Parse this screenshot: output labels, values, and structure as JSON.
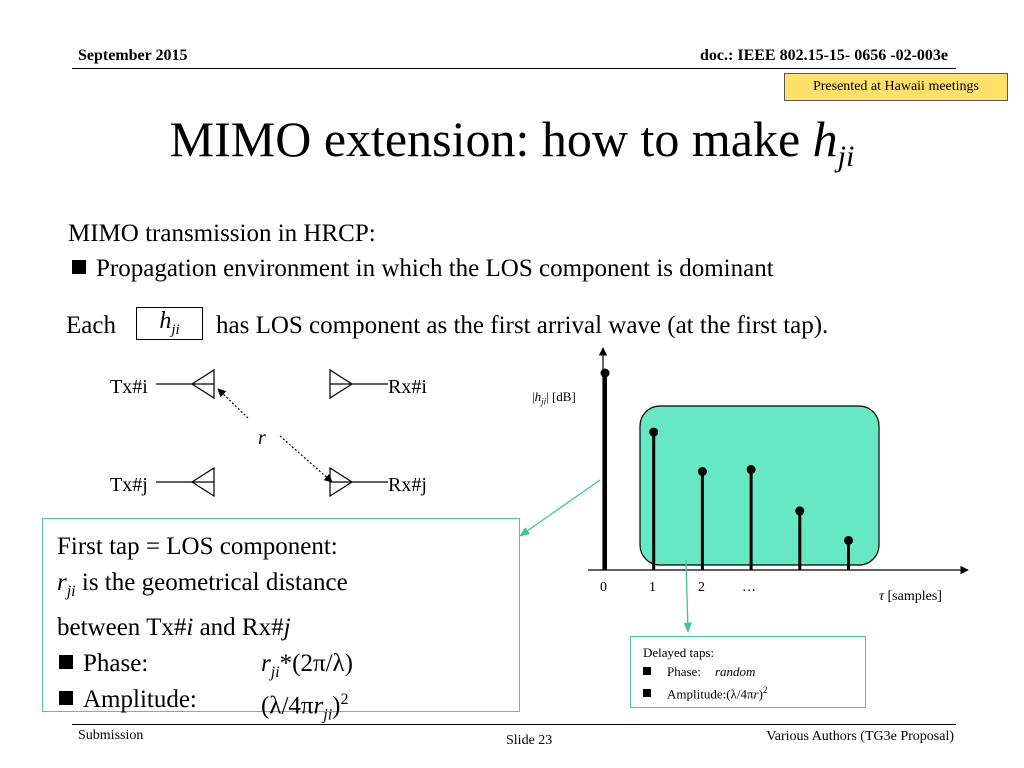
{
  "header": {
    "date": "September 2015",
    "doc": "doc.: IEEE 802.15-15- 0656 -02-003e",
    "note": "Presented at Hawaii meetings"
  },
  "title": {
    "main": "MIMO extension: how to make ",
    "var": "h",
    "sub": "ji"
  },
  "body": {
    "line1": "MIMO transmission in HRCP:",
    "bullet1": "Propagation environment in which the LOS component is dominant",
    "each": "Each",
    "box_var": "h",
    "box_sub": "ji",
    "each_rest": "has LOS component as the first arrival wave (at the first tap)."
  },
  "antenna": {
    "tx_i": "Tx#i",
    "rx_i": "Rx#i",
    "tx_j": "Tx#j",
    "rx_j": "Rx#j",
    "r": "r"
  },
  "chart_data": {
    "type": "stem",
    "ylabel_pre": "|",
    "ylabel_var": "h",
    "ylabel_sub": "ji",
    "ylabel_post": "| [dB]",
    "xlabel_var": "τ",
    "xlabel_post": " [samples]",
    "ticks": [
      "0",
      "1",
      "2",
      "…"
    ],
    "taps": [
      {
        "x": 0,
        "level": 1.0
      },
      {
        "x": 1,
        "level": 0.7
      },
      {
        "x": 2,
        "level": 0.5
      },
      {
        "x": 3,
        "level": 0.51
      },
      {
        "x": 4,
        "level": 0.3
      },
      {
        "x": 5,
        "level": 0.15
      }
    ],
    "highlight_color": "#66e8c4"
  },
  "first_tap": {
    "line1": "First tap = LOS component:",
    "r": "r",
    "r_sub": "ji",
    "line2_rest": " is the geometrical distance",
    "line3_pre": "between Tx#",
    "line3_i": "i",
    "line3_mid": " and Rx#",
    "line3_j": "j",
    "phase_label": "Phase:",
    "phase_r": "r",
    "phase_sub": "ji",
    "phase_rest": "*(2π/λ)",
    "amp_label": "Amplitude:",
    "amp_pre": "(λ/4π",
    "amp_r": "r",
    "amp_sub": "ji",
    "amp_post": ")",
    "amp_exp": "2"
  },
  "delayed": {
    "title": "Delayed taps:",
    "phase_label": "Phase:",
    "phase_value": "random",
    "amp_label": "Amplitude:(λ/4π",
    "amp_r": "r",
    "amp_post": ")",
    "amp_exp": "2"
  },
  "footer": {
    "left": "Submission",
    "center": "Slide 23",
    "right": "Various Authors (TG3e Proposal)"
  }
}
